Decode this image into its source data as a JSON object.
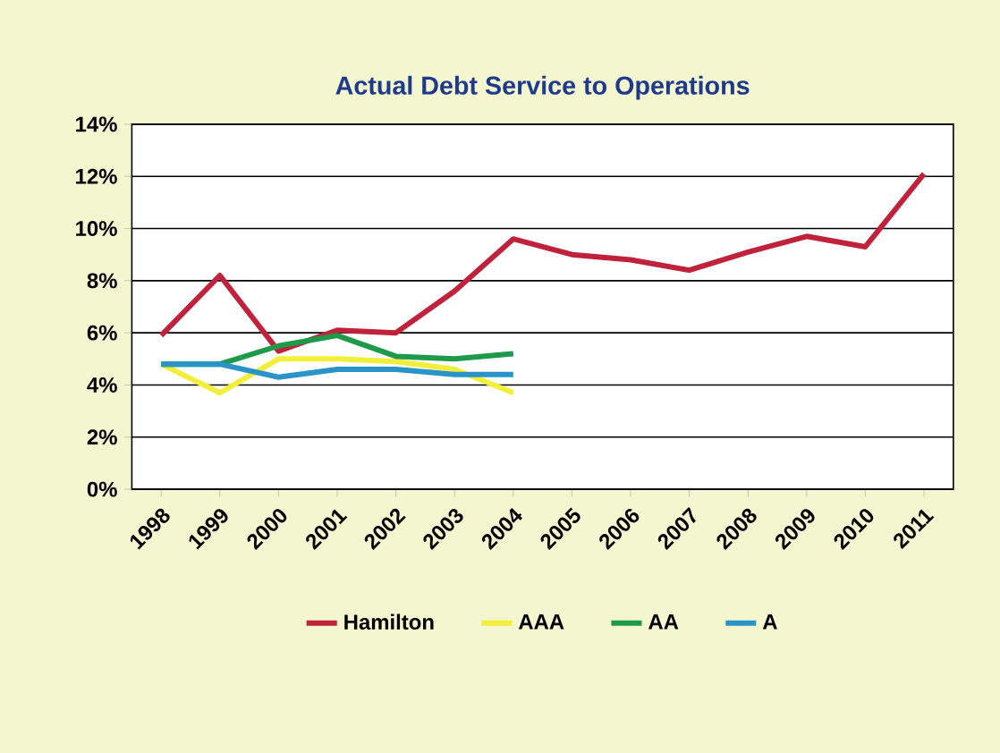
{
  "chart_data": {
    "type": "line",
    "title": "Actual Debt Service to Operations",
    "categories": [
      "1998",
      "1999",
      "2000",
      "2001",
      "2002",
      "2003",
      "2004",
      "2005",
      "2006",
      "2007",
      "2008",
      "2009",
      "2010",
      "2011"
    ],
    "series": [
      {
        "name": "Hamilton",
        "color": "#c0223b",
        "values": [
          5.9,
          8.2,
          5.3,
          6.1,
          6.0,
          7.6,
          9.6,
          9.0,
          8.8,
          8.4,
          9.1,
          9.7,
          9.3,
          12.1
        ]
      },
      {
        "name": "AAA",
        "color": "#f2ef3a",
        "values": [
          4.8,
          3.7,
          5.0,
          5.0,
          4.9,
          4.6,
          3.7,
          null,
          null,
          null,
          null,
          null,
          null,
          null
        ]
      },
      {
        "name": "AA",
        "color": "#1e9a4a",
        "values": [
          4.8,
          4.8,
          5.5,
          5.9,
          5.1,
          5.0,
          5.2,
          null,
          null,
          null,
          null,
          null,
          null,
          null
        ]
      },
      {
        "name": "A",
        "color": "#2a93c8",
        "values": [
          4.8,
          4.8,
          4.3,
          4.6,
          4.6,
          4.4,
          4.4,
          null,
          null,
          null,
          null,
          null,
          null,
          null
        ]
      }
    ],
    "ylim": [
      0,
      14
    ],
    "yticks": [
      {
        "value": 0,
        "label": "0%"
      },
      {
        "value": 2,
        "label": "2%"
      },
      {
        "value": 4,
        "label": "4%"
      },
      {
        "value": 6,
        "label": "6%"
      },
      {
        "value": 8,
        "label": "8%"
      },
      {
        "value": 10,
        "label": "10%"
      },
      {
        "value": 12,
        "label": "12%"
      },
      {
        "value": 14,
        "label": "14%"
      }
    ],
    "grid": "y",
    "legend": "bottom",
    "marker": "none",
    "line_style": "solid"
  }
}
